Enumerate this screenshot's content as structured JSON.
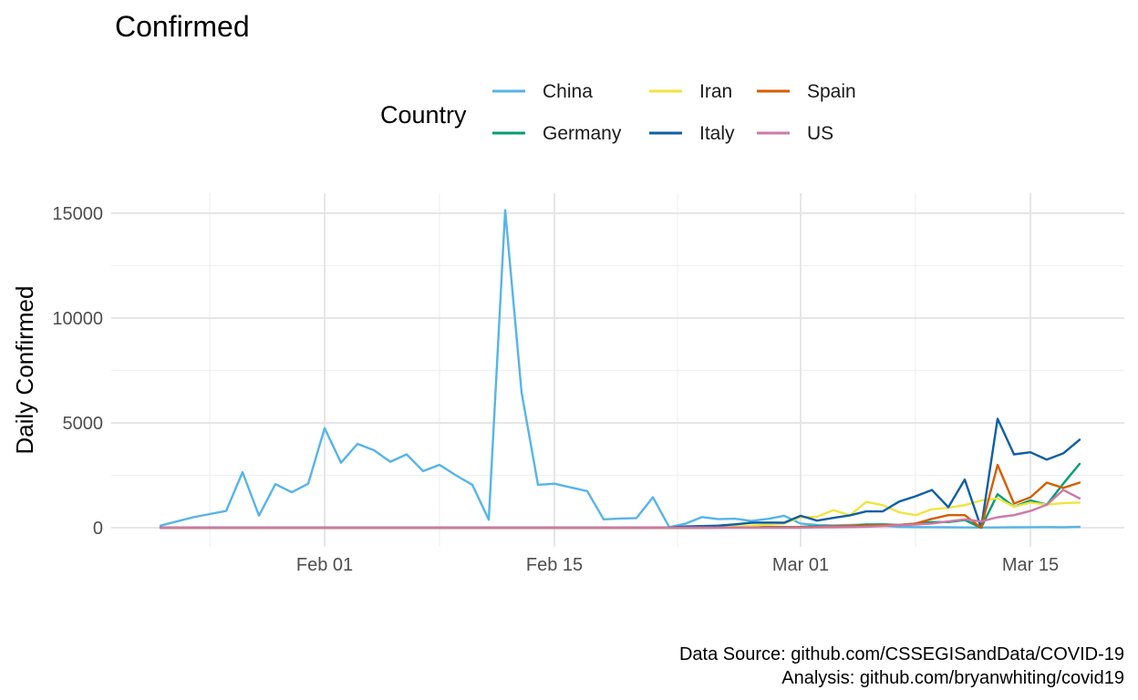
{
  "chart_data": {
    "type": "line",
    "title": "Confirmed",
    "xlabel": "",
    "ylabel": "Daily Confirmed",
    "x_tick_labels": [
      "Feb 01",
      "Feb 15",
      "Mar 01",
      "Mar 15"
    ],
    "x_tick_dates": [
      "2020-02-01",
      "2020-02-15",
      "2020-03-01",
      "2020-03-15"
    ],
    "y_tick_labels": [
      "0",
      "5000",
      "10000",
      "15000"
    ],
    "y_ticks": [
      0,
      5000,
      10000,
      15000
    ],
    "ylim": [
      0,
      15000
    ],
    "xlim": [
      "2020-01-22",
      "2020-03-18"
    ],
    "grid": true,
    "legend": {
      "title": "Country",
      "placement": "top"
    },
    "caption": [
      "Data Source: github.com/CSSEGISandData/COVID-19",
      "Analysis: github.com/bryanwhiting/covid19"
    ],
    "x": [
      "2020-01-22",
      "2020-01-23",
      "2020-01-24",
      "2020-01-25",
      "2020-01-26",
      "2020-01-27",
      "2020-01-28",
      "2020-01-29",
      "2020-01-30",
      "2020-01-31",
      "2020-02-01",
      "2020-02-02",
      "2020-02-03",
      "2020-02-04",
      "2020-02-05",
      "2020-02-06",
      "2020-02-07",
      "2020-02-08",
      "2020-02-09",
      "2020-02-10",
      "2020-02-11",
      "2020-02-12",
      "2020-02-13",
      "2020-02-14",
      "2020-02-15",
      "2020-02-16",
      "2020-02-17",
      "2020-02-18",
      "2020-02-19",
      "2020-02-20",
      "2020-02-21",
      "2020-02-22",
      "2020-02-23",
      "2020-02-24",
      "2020-02-25",
      "2020-02-26",
      "2020-02-27",
      "2020-02-28",
      "2020-02-29",
      "2020-03-01",
      "2020-03-02",
      "2020-03-03",
      "2020-03-04",
      "2020-03-05",
      "2020-03-06",
      "2020-03-07",
      "2020-03-08",
      "2020-03-09",
      "2020-03-10",
      "2020-03-11",
      "2020-03-12",
      "2020-03-13",
      "2020-03-14",
      "2020-03-15",
      "2020-03-16",
      "2020-03-17",
      "2020-03-18"
    ],
    "series": [
      {
        "name": "China",
        "color": "#56B4E9",
        "values": [
          100,
          300,
          500,
          650,
          800,
          2650,
          580,
          2080,
          1690,
          2100,
          4750,
          3100,
          4000,
          3700,
          3150,
          3500,
          2700,
          3000,
          2500,
          2050,
          380,
          15150,
          6450,
          2050,
          2100,
          1920,
          1750,
          400,
          440,
          460,
          1450,
          25,
          200,
          510,
          410,
          430,
          320,
          420,
          570,
          200,
          130,
          115,
          135,
          150,
          95,
          45,
          30,
          25,
          20,
          15,
          10,
          15,
          20,
          25,
          30,
          20,
          40
        ]
      },
      {
        "name": "Germany",
        "color": "#009E73",
        "values": [
          0,
          0,
          0,
          0,
          0,
          0,
          0,
          0,
          0,
          0,
          0,
          0,
          0,
          0,
          0,
          0,
          0,
          0,
          0,
          0,
          0,
          0,
          0,
          0,
          0,
          0,
          0,
          0,
          0,
          0,
          0,
          0,
          0,
          0,
          5,
          15,
          25,
          40,
          35,
          40,
          70,
          60,
          80,
          150,
          160,
          130,
          200,
          270,
          270,
          370,
          0,
          1600,
          1000,
          1300,
          1100,
          2100,
          3050
        ]
      },
      {
        "name": "Iran",
        "color": "#F0E442",
        "values": [
          0,
          0,
          0,
          0,
          0,
          0,
          0,
          0,
          0,
          0,
          0,
          0,
          0,
          0,
          0,
          0,
          0,
          0,
          0,
          0,
          0,
          0,
          0,
          0,
          0,
          0,
          0,
          0,
          0,
          0,
          0,
          0,
          0,
          0,
          40,
          60,
          100,
          150,
          200,
          500,
          520,
          840,
          590,
          1230,
          1080,
          740,
          600,
          880,
          950,
          1080,
          1300,
          1400,
          1000,
          1200,
          1100,
          1180,
          1200
        ]
      },
      {
        "name": "Italy",
        "color": "#0e5fa4",
        "values": [
          0,
          0,
          0,
          0,
          0,
          0,
          0,
          0,
          0,
          0,
          0,
          0,
          0,
          0,
          0,
          0,
          0,
          0,
          0,
          0,
          0,
          0,
          0,
          0,
          0,
          0,
          0,
          0,
          0,
          0,
          0,
          10,
          60,
          80,
          100,
          160,
          240,
          250,
          240,
          570,
          340,
          470,
          590,
          780,
          780,
          1250,
          1500,
          1800,
          980,
          2300,
          0,
          5200,
          3500,
          3600,
          3250,
          3550,
          4200
        ]
      },
      {
        "name": "Spain",
        "color": "#D55E00",
        "values": [
          0,
          0,
          0,
          0,
          0,
          0,
          0,
          0,
          0,
          0,
          0,
          0,
          0,
          0,
          0,
          0,
          0,
          0,
          0,
          0,
          0,
          0,
          0,
          0,
          0,
          0,
          0,
          0,
          0,
          0,
          0,
          0,
          0,
          0,
          5,
          10,
          10,
          20,
          20,
          30,
          40,
          70,
          90,
          100,
          120,
          130,
          200,
          420,
          600,
          600,
          0,
          3000,
          1150,
          1450,
          2150,
          1900,
          2150
        ]
      },
      {
        "name": "US",
        "color": "#CC79A7",
        "values": [
          0,
          0,
          0,
          0,
          0,
          0,
          0,
          0,
          0,
          0,
          0,
          0,
          0,
          0,
          0,
          0,
          0,
          0,
          0,
          0,
          0,
          0,
          0,
          0,
          0,
          0,
          0,
          0,
          0,
          0,
          0,
          0,
          0,
          0,
          0,
          0,
          0,
          0,
          0,
          0,
          15,
          20,
          30,
          50,
          80,
          120,
          150,
          200,
          300,
          400,
          300,
          500,
          600,
          800,
          1100,
          1800,
          1400
        ]
      }
    ]
  }
}
